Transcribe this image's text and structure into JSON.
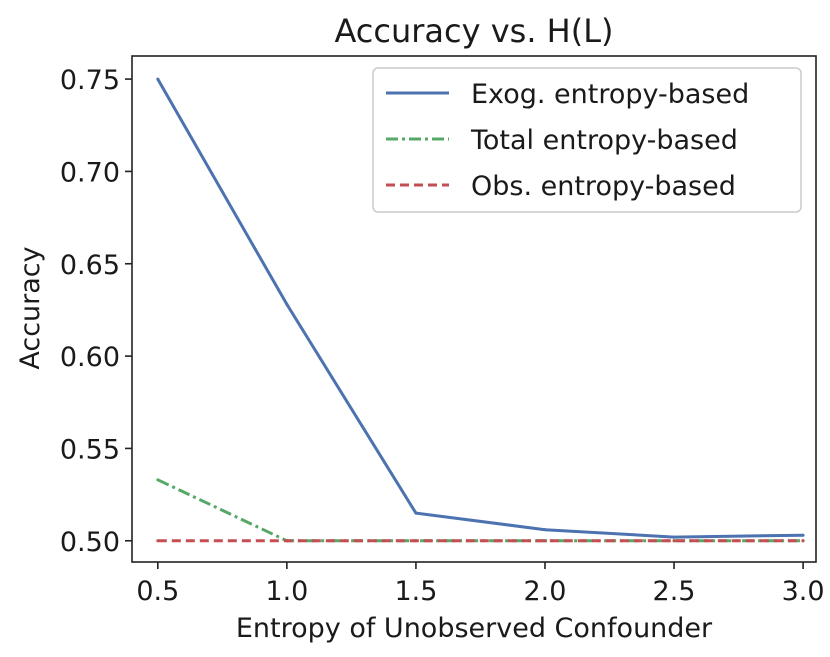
{
  "chart_data": {
    "type": "line",
    "title": "Accuracy vs. H(L)",
    "xlabel": "Entropy of Unobserved Confounder",
    "ylabel": "Accuracy",
    "xlim": [
      0.4,
      3.05
    ],
    "ylim": [
      0.4885,
      0.7625
    ],
    "x_ticks": [
      "0.5",
      "1.0",
      "1.5",
      "2.0",
      "2.5",
      "3.0"
    ],
    "y_ticks": [
      "0.50",
      "0.55",
      "0.60",
      "0.65",
      "0.70",
      "0.75"
    ],
    "x": [
      0.5,
      1.0,
      1.5,
      2.0,
      2.5,
      3.0
    ],
    "legend_position": "top-right",
    "grid": false,
    "series": [
      {
        "name": "Exog. entropy-based",
        "values": [
          0.75,
          0.628,
          0.515,
          0.506,
          0.502,
          0.503
        ],
        "color": "#4c72b0",
        "style": "solid"
      },
      {
        "name": "Total entropy-based",
        "values": [
          0.533,
          0.5,
          0.5,
          0.5,
          0.5,
          0.5
        ],
        "color": "#55a868",
        "style": "dashdot"
      },
      {
        "name": "Obs. entropy-based",
        "values": [
          0.5,
          0.5,
          0.5,
          0.5,
          0.5,
          0.5
        ],
        "color": "#c44e52",
        "style": "dashed"
      }
    ]
  }
}
